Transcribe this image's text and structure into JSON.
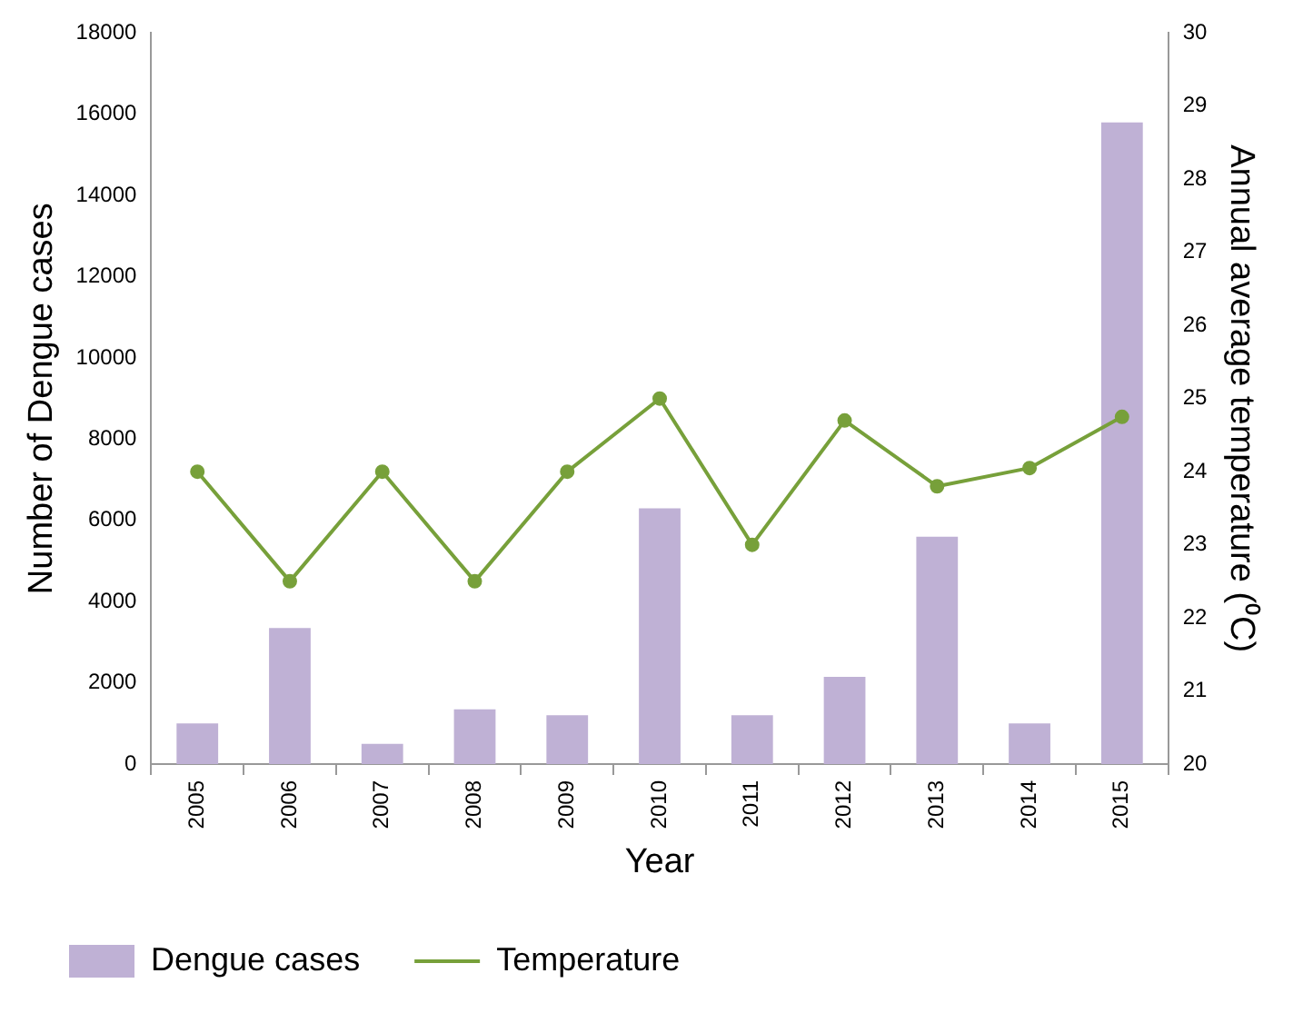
{
  "chart_data": {
    "type": "bar",
    "xlabel": "Year",
    "ylabel": "Number of Dengue cases",
    "y2label": "Annual average temperature (⁰C)",
    "categories": [
      "2005",
      "2006",
      "2007",
      "2008",
      "2009",
      "2010",
      "2011",
      "2012",
      "2013",
      "2014",
      "2015"
    ],
    "series": [
      {
        "name": "Dengue cases",
        "color": "#bfb1d5",
        "values": [
          1000,
          3350,
          500,
          1350,
          1200,
          6300,
          1200,
          2150,
          5600,
          1000,
          15800
        ]
      },
      {
        "name": "Temperature",
        "type": "line",
        "axis": "y2",
        "color": "#77a03a",
        "values": [
          24.0,
          22.5,
          24.0,
          22.5,
          24.0,
          25.0,
          23.0,
          24.7,
          23.8,
          24.05,
          24.75
        ]
      }
    ],
    "ylim": [
      0,
      18000
    ],
    "yticks": [
      0,
      2000,
      4000,
      6000,
      8000,
      10000,
      12000,
      14000,
      16000,
      18000
    ],
    "y2lim": [
      20,
      30
    ],
    "y2ticks": [
      20,
      21,
      22,
      23,
      24,
      25,
      26,
      27,
      28,
      29,
      30
    ],
    "grid": false,
    "legend": "bottom",
    "marker": "circle",
    "line_style": "solid"
  }
}
